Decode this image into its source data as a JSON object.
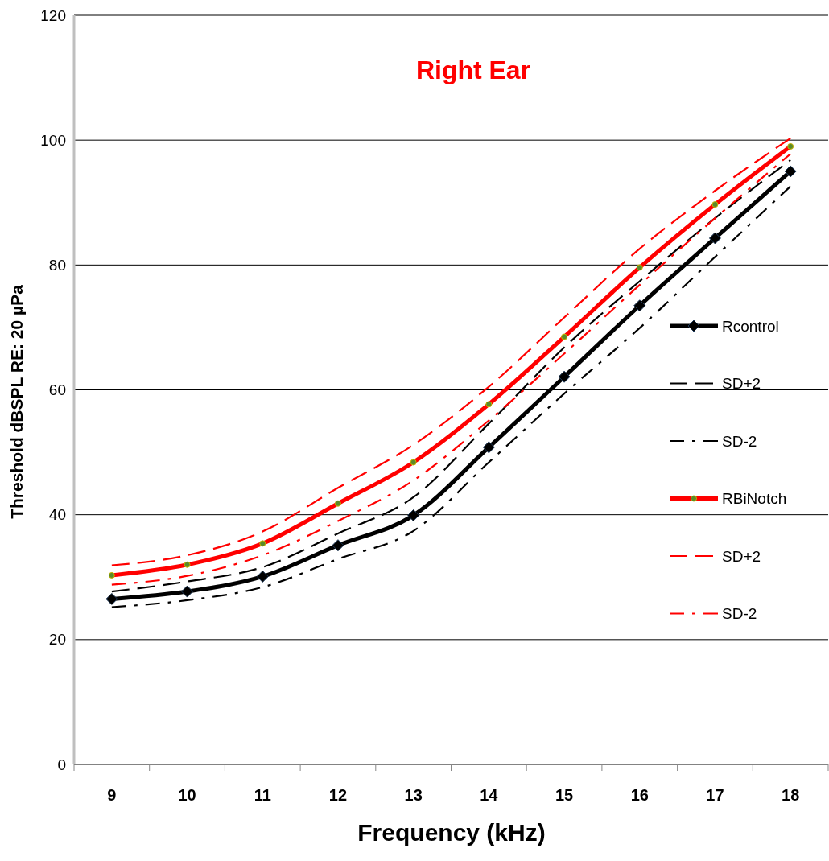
{
  "chart_data": {
    "type": "line",
    "title": "Right Ear",
    "xlabel": "Frequency (kHz)",
    "ylabel": "Threshold dBSPL RE: 20 µPa",
    "categories": [
      "9",
      "10",
      "11",
      "12",
      "13",
      "14",
      "15",
      "16",
      "17",
      "18"
    ],
    "ylim": [
      0,
      120
    ],
    "yticks": [
      0,
      20,
      40,
      60,
      80,
      100,
      120
    ],
    "grid": "y",
    "legend": "right",
    "series": [
      {
        "name": "Rcontrol",
        "color": "#000000",
        "line_style": "solid",
        "marker": "diamond",
        "values": [
          26.5,
          27.7,
          30.1,
          35.1,
          39.9,
          50.8,
          62.1,
          73.5,
          84.3,
          95.0
        ]
      },
      {
        "name": "SD+2",
        "color": "#000000",
        "line_style": "dashed",
        "marker": "none",
        "values": [
          27.7,
          29.3,
          31.6,
          37.0,
          42.8,
          54.6,
          66.8,
          77.4,
          87.5,
          96.8
        ]
      },
      {
        "name": "SD-2",
        "color": "#000000",
        "line_style": "dashdot",
        "marker": "none",
        "values": [
          25.2,
          26.3,
          28.4,
          32.9,
          37.4,
          48.4,
          59.4,
          69.9,
          81.3,
          92.6
        ]
      },
      {
        "name": "RBiNotch",
        "color": "#ff0000",
        "line_style": "solid",
        "marker": "circle",
        "values": [
          30.3,
          32.0,
          35.4,
          41.8,
          48.4,
          57.7,
          68.5,
          79.6,
          89.7,
          99.0
        ]
      },
      {
        "name": "SD+2",
        "color": "#ff0000",
        "line_style": "dashed",
        "marker": "none",
        "values": [
          31.9,
          33.5,
          37.3,
          44.3,
          51.2,
          60.5,
          71.6,
          82.6,
          91.9,
          100.3
        ]
      },
      {
        "name": "SD-2",
        "color": "#ff0000",
        "line_style": "dashdot",
        "marker": "none",
        "values": [
          28.8,
          30.2,
          33.5,
          39.0,
          45.5,
          55.1,
          65.8,
          76.8,
          87.5,
          97.8
        ]
      }
    ]
  }
}
